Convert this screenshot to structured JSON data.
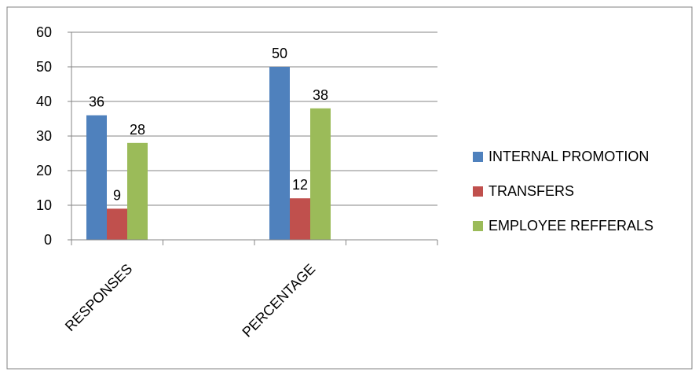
{
  "chart_data": {
    "type": "bar",
    "title": "",
    "xlabel": "",
    "ylabel": "",
    "categories": [
      "RESPONSES",
      "PERCENTAGE"
    ],
    "series": [
      {
        "name": "INTERNAL PROMOTION",
        "values": [
          36,
          50
        ],
        "color": "#4F81BD"
      },
      {
        "name": "TRANSFERS",
        "values": [
          9,
          12
        ],
        "color": "#C0504D"
      },
      {
        "name": "EMPLOYEE REFFERALS",
        "values": [
          28,
          38
        ],
        "color": "#9BBB59"
      }
    ],
    "ylim": [
      0,
      60
    ],
    "yticks": [
      0,
      10,
      20,
      30,
      40,
      50,
      60
    ],
    "grid": true,
    "legend_position": "right",
    "data_labels": true
  }
}
